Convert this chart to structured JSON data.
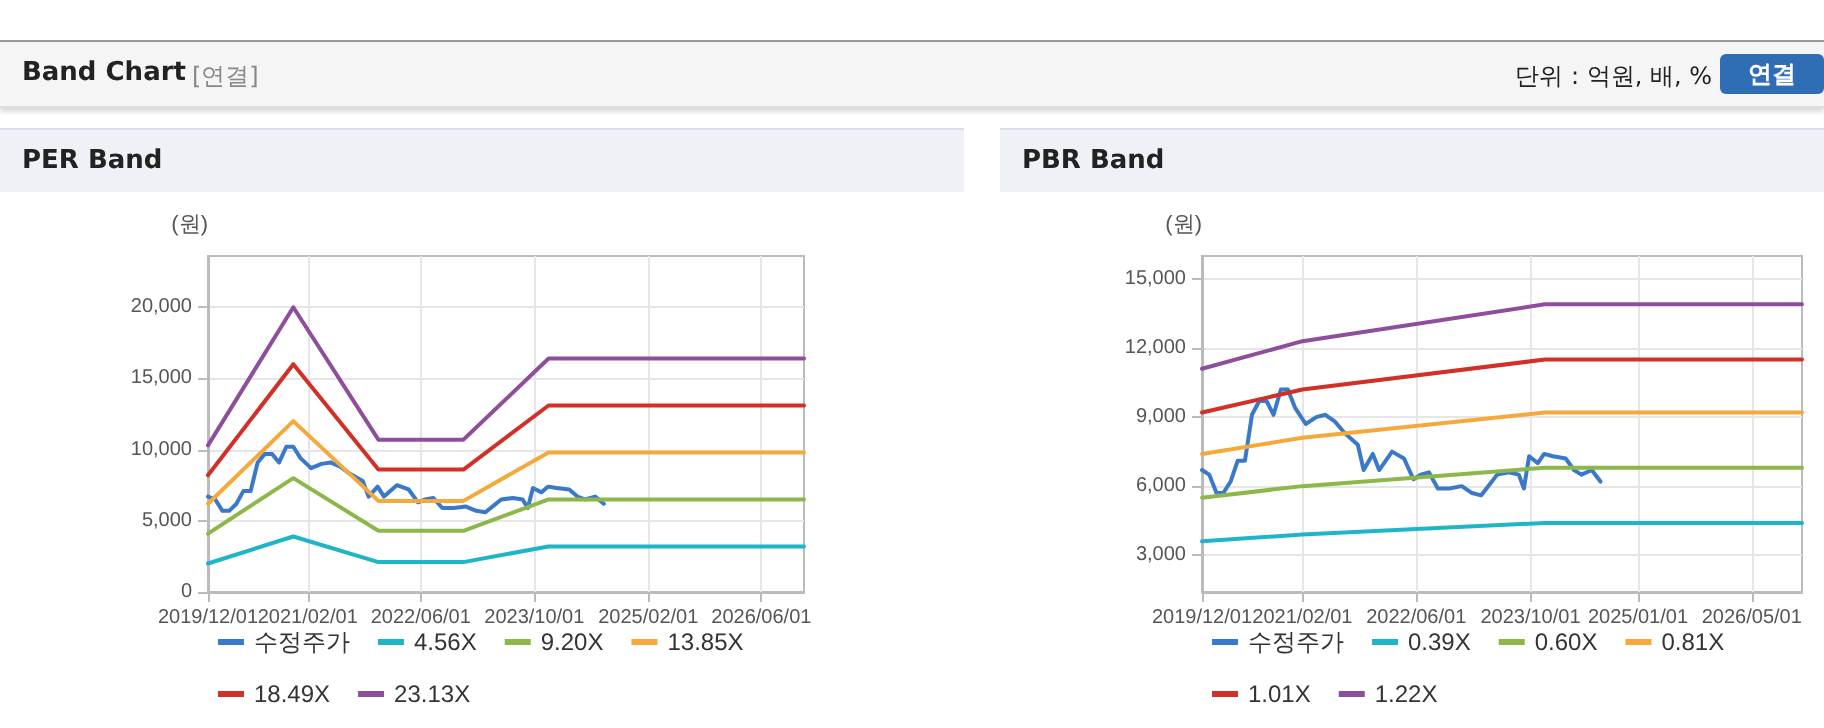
{
  "chart_data": [
    {
      "type": "line",
      "title": "PER Band",
      "ylabel": "(원)",
      "annotations": [
        "Band Chart",
        "[연결]",
        "단위 : 억원, 배, %",
        "연결"
      ],
      "xlim": [
        "2019-12-01",
        "2026-12-01"
      ],
      "xticks": [
        {
          "value": "2019-12-01",
          "label": "2019/12/01"
        },
        {
          "value": "2021-02-01",
          "label": "2021/02/01"
        },
        {
          "value": "2022-06-01",
          "label": "2022/06/01"
        },
        {
          "value": "2023-10-01",
          "label": "2023/10/01"
        },
        {
          "value": "2025-02-01",
          "label": "2025/02/01"
        },
        {
          "value": "2026-06-01",
          "label": "2026/06/01"
        }
      ],
      "ylim": [
        0,
        23600
      ],
      "yticks": [
        {
          "value": 0,
          "label": "0"
        },
        {
          "value": 5000,
          "label": "5,000"
        },
        {
          "value": 10000,
          "label": "10,000"
        },
        {
          "value": 15000,
          "label": "15,000"
        },
        {
          "value": 20000,
          "label": "20,000"
        }
      ],
      "grid": true,
      "legend": "bottom",
      "series": [
        {
          "name": "수정주가",
          "color": "#3a78c9",
          "x": [
            "2019-12-01",
            "2020-01-01",
            "2020-02-01",
            "2020-03-01",
            "2020-04-01",
            "2020-05-01",
            "2020-06-01",
            "2020-07-01",
            "2020-08-01",
            "2020-09-01",
            "2020-10-01",
            "2020-11-01",
            "2020-12-01",
            "2021-01-01",
            "2021-02-15",
            "2021-04-01",
            "2021-05-10",
            "2021-06-20",
            "2021-08-01",
            "2021-09-25",
            "2021-10-20",
            "2021-11-28",
            "2021-12-25",
            "2022-02-18",
            "2022-04-10",
            "2022-05-20",
            "2022-06-20",
            "2022-07-25",
            "2022-09-01",
            "2022-10-20",
            "2022-12-12",
            "2023-01-25",
            "2023-03-05",
            "2023-04-12",
            "2023-05-12",
            "2023-07-01",
            "2023-08-12",
            "2023-09-03",
            "2023-09-25",
            "2023-11-01",
            "2023-11-28",
            "2024-01-05",
            "2024-02-28",
            "2024-04-03",
            "2024-05-05",
            "2024-06-18",
            "2024-07-25"
          ],
          "values": [
            6700,
            6500,
            5700,
            5700,
            6200,
            7100,
            7100,
            9100,
            9700,
            9700,
            9100,
            10200,
            10200,
            9400,
            8700,
            9000,
            9100,
            8800,
            8300,
            7800,
            6700,
            7400,
            6700,
            7500,
            7200,
            6300,
            6500,
            6600,
            5900,
            5900,
            6000,
            5700,
            5600,
            6100,
            6500,
            6600,
            6500,
            5900,
            7300,
            7000,
            7400,
            7300,
            7200,
            6700,
            6500,
            6700,
            6200
          ]
        },
        {
          "name": "4.56X",
          "color": "#1fb5c8",
          "x": [
            "2019-12-01",
            "2020-12-01",
            "2021-12-01",
            "2022-12-01",
            "2023-12-01",
            "2026-12-01"
          ],
          "values": [
            2000,
            3900,
            2100,
            2100,
            3200,
            3200
          ]
        },
        {
          "name": "9.20X",
          "color": "#8cb84a",
          "x": [
            "2019-12-01",
            "2020-12-01",
            "2021-12-01",
            "2022-12-01",
            "2023-12-01",
            "2026-12-01"
          ],
          "values": [
            4100,
            8000,
            4300,
            4300,
            6500,
            6500
          ]
        },
        {
          "name": "13.85X",
          "color": "#f5a93a",
          "x": [
            "2019-12-01",
            "2020-12-01",
            "2021-12-01",
            "2022-12-01",
            "2023-12-01",
            "2026-12-01"
          ],
          "values": [
            6200,
            12000,
            6400,
            6400,
            9800,
            9800
          ]
        },
        {
          "name": "18.49X",
          "color": "#d22f27",
          "x": [
            "2019-12-01",
            "2020-12-01",
            "2021-12-01",
            "2022-12-01",
            "2023-12-01",
            "2026-12-01"
          ],
          "values": [
            8200,
            16000,
            8600,
            8600,
            13100,
            13100
          ]
        },
        {
          "name": "23.13X",
          "color": "#8e4e9c",
          "x": [
            "2019-12-01",
            "2020-12-01",
            "2021-12-01",
            "2022-12-01",
            "2023-12-01",
            "2026-12-01"
          ],
          "values": [
            10300,
            20000,
            10700,
            10700,
            16400,
            16400
          ]
        }
      ]
    },
    {
      "type": "line",
      "title": "PBR Band",
      "ylabel": "(원)",
      "xlim": [
        "2019-12-01",
        "2026-12-01"
      ],
      "xticks": [
        {
          "value": "2019-12-01",
          "label": "2019/12/01"
        },
        {
          "value": "2021-02-01",
          "label": "2021/02/01"
        },
        {
          "value": "2022-06-01",
          "label": "2022/06/01"
        },
        {
          "value": "2023-10-01",
          "label": "2023/10/01"
        },
        {
          "value": "2025-01-01",
          "label": "2025/01/01"
        },
        {
          "value": "2026-05-01",
          "label": "2026/05/01"
        }
      ],
      "ylim": [
        1400,
        16000
      ],
      "yticks": [
        {
          "value": 3000,
          "label": "3,000"
        },
        {
          "value": 6000,
          "label": "6,000"
        },
        {
          "value": 9000,
          "label": "9,000"
        },
        {
          "value": 12000,
          "label": "12,000"
        },
        {
          "value": 15000,
          "label": "15,000"
        }
      ],
      "grid": true,
      "legend": "bottom",
      "series": [
        {
          "name": "수정주가",
          "color": "#3a78c9",
          "x": [
            "2019-12-01",
            "2020-01-01",
            "2020-02-01",
            "2020-03-01",
            "2020-04-01",
            "2020-05-01",
            "2020-06-01",
            "2020-07-01",
            "2020-08-01",
            "2020-09-01",
            "2020-10-01",
            "2020-11-01",
            "2020-12-01",
            "2021-01-01",
            "2021-02-15",
            "2021-04-01",
            "2021-05-10",
            "2021-06-20",
            "2021-08-01",
            "2021-09-25",
            "2021-10-20",
            "2021-11-28",
            "2021-12-25",
            "2022-02-18",
            "2022-04-10",
            "2022-05-20",
            "2022-06-20",
            "2022-07-25",
            "2022-09-01",
            "2022-10-20",
            "2022-12-12",
            "2023-01-25",
            "2023-03-05",
            "2023-04-12",
            "2023-05-12",
            "2023-07-01",
            "2023-08-12",
            "2023-09-03",
            "2023-09-25",
            "2023-11-01",
            "2023-11-28",
            "2024-01-05",
            "2024-02-28",
            "2024-04-03",
            "2024-05-05",
            "2024-06-18",
            "2024-07-25"
          ],
          "values": [
            6700,
            6500,
            5700,
            5700,
            6200,
            7100,
            7100,
            9100,
            9700,
            9700,
            9100,
            10200,
            10200,
            9400,
            8700,
            9000,
            9100,
            8800,
            8300,
            7800,
            6700,
            7400,
            6700,
            7500,
            7200,
            6300,
            6500,
            6600,
            5900,
            5900,
            6000,
            5700,
            5600,
            6100,
            6500,
            6600,
            6500,
            5900,
            7300,
            7000,
            7400,
            7300,
            7200,
            6700,
            6500,
            6700,
            6200
          ]
        },
        {
          "name": "0.39X",
          "color": "#1fb5c8",
          "x": [
            "2019-12-01",
            "2021-02-01",
            "2023-12-01",
            "2026-12-01"
          ],
          "values": [
            3600,
            3900,
            4400,
            4400
          ]
        },
        {
          "name": "0.60X",
          "color": "#8cb84a",
          "x": [
            "2019-12-01",
            "2021-02-01",
            "2023-12-01",
            "2026-12-01"
          ],
          "values": [
            5500,
            6000,
            6800,
            6800
          ]
        },
        {
          "name": "0.81X",
          "color": "#f5a93a",
          "x": [
            "2019-12-01",
            "2021-02-01",
            "2023-12-01",
            "2026-12-01"
          ],
          "values": [
            7400,
            8100,
            9200,
            9200
          ]
        },
        {
          "name": "1.01X",
          "color": "#d22f27",
          "x": [
            "2019-12-01",
            "2021-02-01",
            "2023-12-01",
            "2026-12-01"
          ],
          "values": [
            9200,
            10200,
            11500,
            11500
          ]
        },
        {
          "name": "1.22X",
          "color": "#8e4e9c",
          "x": [
            "2019-12-01",
            "2021-02-01",
            "2023-12-01",
            "2026-12-01"
          ],
          "values": [
            11100,
            12300,
            13900,
            13900
          ]
        }
      ]
    }
  ]
}
